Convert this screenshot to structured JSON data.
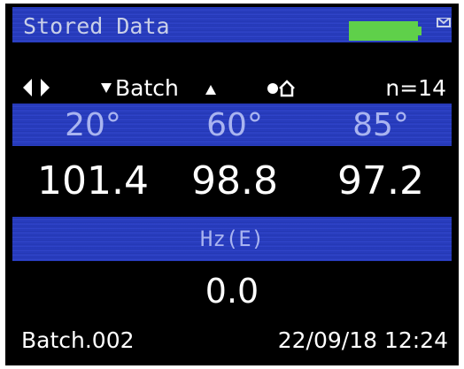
{
  "header": {
    "title": "Stored Data"
  },
  "status": {
    "batch": "Batch",
    "count": "n=14"
  },
  "angles": [
    "20°",
    "60°",
    "85°"
  ],
  "gloss_values": [
    "101.4",
    "98.8",
    "97.2"
  ],
  "haze": {
    "label": "Hz(E)",
    "value": "0.0"
  },
  "footer": {
    "batch_name": "Batch.002",
    "datetime": "22/09/18 12:24"
  }
}
